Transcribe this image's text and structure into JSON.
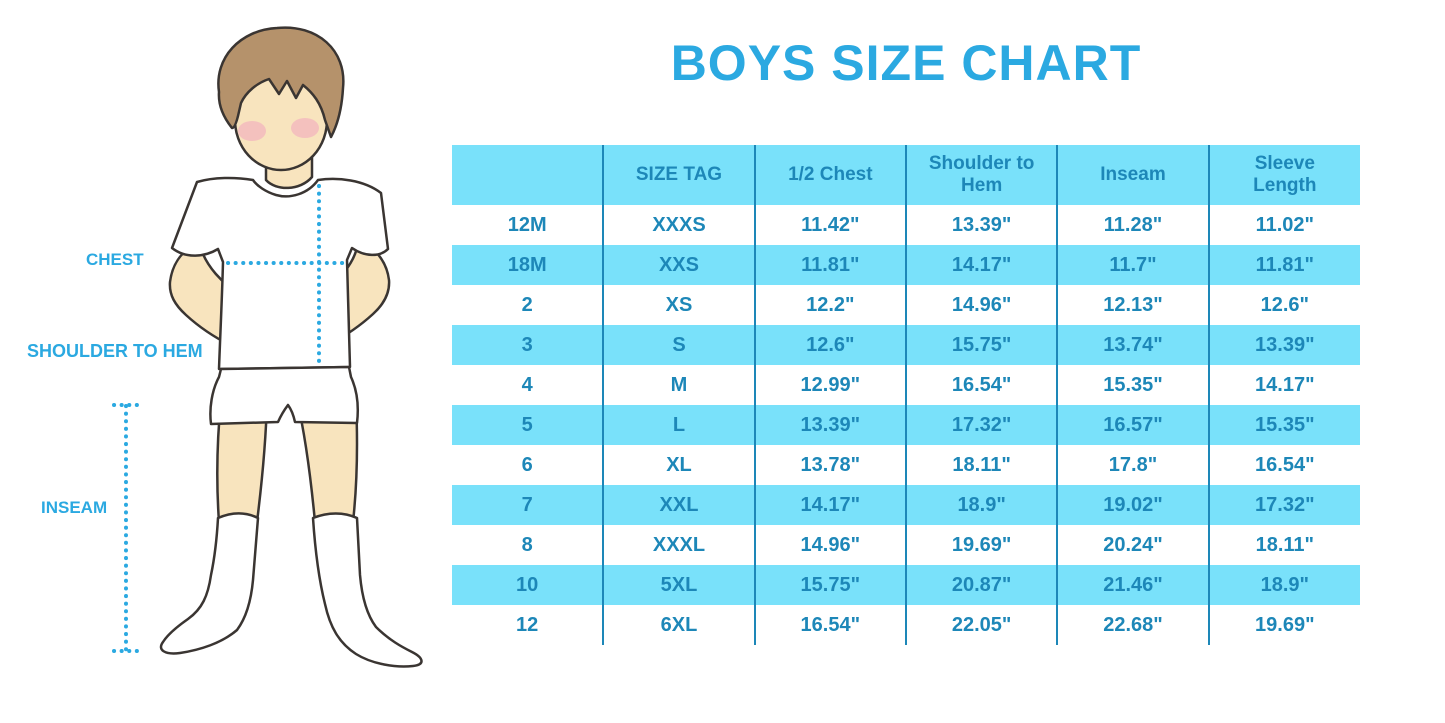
{
  "title": "BOYS SIZE CHART",
  "figure": {
    "labels": {
      "chest": "CHEST",
      "shoulder_to_hem": "SHOULDER TO HEM",
      "inseam": "INSEAM"
    }
  },
  "chart_data": {
    "type": "table",
    "title": "BOYS SIZE CHART",
    "columns": [
      "",
      "SIZE TAG",
      "1/2 Chest",
      "Shoulder to Hem",
      "Inseam",
      "Sleeve Length"
    ],
    "rows": [
      [
        "12M",
        "XXXS",
        "11.42\"",
        "13.39\"",
        "11.28\"",
        "11.02\""
      ],
      [
        "18M",
        "XXS",
        "11.81\"",
        "14.17\"",
        "11.7\"",
        "11.81\""
      ],
      [
        "2",
        "XS",
        "12.2\"",
        "14.96\"",
        "12.13\"",
        "12.6\""
      ],
      [
        "3",
        "S",
        "12.6\"",
        "15.75\"",
        "13.74\"",
        "13.39\""
      ],
      [
        "4",
        "M",
        "12.99\"",
        "16.54\"",
        "15.35\"",
        "14.17\""
      ],
      [
        "5",
        "L",
        "13.39\"",
        "17.32\"",
        "16.57\"",
        "15.35\""
      ],
      [
        "6",
        "XL",
        "13.78\"",
        "18.11\"",
        "17.8\"",
        "16.54\""
      ],
      [
        "7",
        "XXL",
        "14.17\"",
        "18.9\"",
        "19.02\"",
        "17.32\""
      ],
      [
        "8",
        "XXXL",
        "14.96\"",
        "19.69\"",
        "20.24\"",
        "18.11\""
      ],
      [
        "10",
        "5XL",
        "15.75\"",
        "20.87\"",
        "21.46\"",
        "18.9\""
      ],
      [
        "12",
        "6XL",
        "16.54\"",
        "22.05\"",
        "22.68\"",
        "19.69\""
      ]
    ],
    "row_striping": "white / light-blue alternating, header light-blue",
    "grid": "vertical column dividers only"
  },
  "colors": {
    "accent": "#2BA9E1",
    "table_fill": "#79E1FA",
    "table_text": "#1D87B8",
    "divider": "#1D87B8",
    "skin": "#F8E4BE",
    "hair": "#B5926B",
    "outline": "#3A3532",
    "cheek": "#F2AABE"
  }
}
